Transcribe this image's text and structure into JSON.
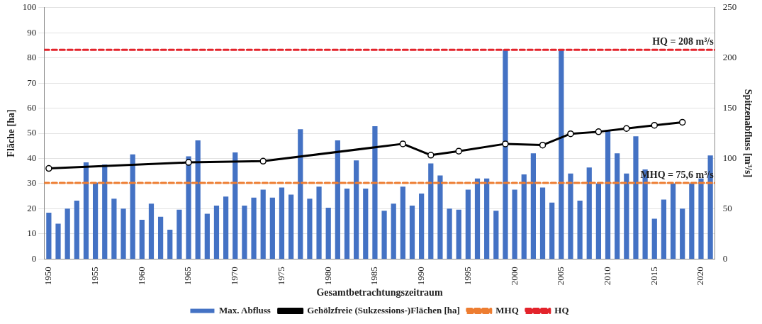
{
  "chart_data": {
    "type": "bar",
    "xlabel": "Gesamtbetrachtungszeitraum",
    "ylabel": "Fläche [ha]",
    "y2label": "Spitzenabfluss [m³/s]",
    "x": [
      1950,
      1951,
      1952,
      1953,
      1954,
      1955,
      1956,
      1957,
      1958,
      1959,
      1960,
      1961,
      1962,
      1963,
      1964,
      1965,
      1966,
      1967,
      1968,
      1969,
      1970,
      1971,
      1972,
      1973,
      1974,
      1975,
      1976,
      1977,
      1978,
      1979,
      1980,
      1981,
      1982,
      1983,
      1984,
      1985,
      1986,
      1987,
      1988,
      1989,
      1990,
      1991,
      1992,
      1993,
      1994,
      1995,
      1996,
      1997,
      1998,
      1999,
      2000,
      2001,
      2002,
      2003,
      2004,
      2005,
      2006,
      2007,
      2008,
      2009,
      2010,
      2011,
      2012,
      2013,
      2014,
      2015,
      2016,
      2017,
      2018,
      2019,
      2020,
      2021
    ],
    "series": [
      {
        "name": "Max. Abfluss",
        "axis": "y2",
        "color": "#4472c4",
        "values": [
          46,
          35,
          50,
          58,
          96,
          76,
          94,
          60,
          50,
          104,
          39,
          55,
          42,
          29,
          49,
          102,
          118,
          45,
          53,
          62,
          106,
          53,
          61,
          69,
          61,
          71,
          64,
          129,
          60,
          72,
          51,
          118,
          70,
          98,
          70,
          132,
          48,
          55,
          72,
          53,
          65,
          95,
          83,
          50,
          49,
          69,
          80,
          80,
          48,
          208,
          69,
          84,
          105,
          71,
          56,
          208,
          85,
          58,
          91,
          75,
          128,
          105,
          85,
          122,
          89,
          40,
          59,
          75,
          50,
          75,
          80,
          103
        ]
      },
      {
        "name": "Gehölzfreie (Sukzessions-)Flächen [ha]",
        "type": "line",
        "axis": "y",
        "color": "#000000",
        "marker": "circle",
        "line_style": "solid",
        "x": [
          1950,
          1965,
          1973,
          1988,
          1991,
          1994,
          1999,
          2003,
          2006,
          2009,
          2012,
          2015,
          2018
        ],
        "values": [
          36,
          38.4,
          38.9,
          45.8,
          41.3,
          42.9,
          45.8,
          45.3,
          49.8,
          50.6,
          51.9,
          53.2,
          54.4
        ]
      },
      {
        "name": "MHQ",
        "type": "line",
        "axis": "y2",
        "color": "#ed7d31",
        "marker": "none",
        "line_style": "dashed",
        "x": [
          1949.5,
          2021.5
        ],
        "values": [
          75.6,
          75.6
        ]
      },
      {
        "name": "HQ",
        "type": "line",
        "axis": "y2",
        "color": "#e3232b",
        "marker": "none",
        "line_style": "dashed",
        "x": [
          1949.5,
          2021.5
        ],
        "values": [
          208,
          208
        ]
      }
    ],
    "annotations": [
      "MHQ = 75,6 m³/s",
      "HQ = 208 m³/s"
    ],
    "xlim": [
      1949.5,
      2021.5
    ],
    "xticks": [
      1950,
      1955,
      1960,
      1965,
      1970,
      1975,
      1980,
      1985,
      1990,
      1995,
      2000,
      2005,
      2010,
      2015,
      2020
    ],
    "ylim": [
      0,
      100
    ],
    "yticks": [
      0,
      10,
      20,
      30,
      40,
      50,
      60,
      70,
      80,
      90,
      100
    ],
    "y2lim": [
      0,
      250
    ],
    "y2ticks": [
      0,
      50,
      100,
      150,
      200,
      250
    ],
    "grid": "y",
    "legend": "bottom"
  }
}
